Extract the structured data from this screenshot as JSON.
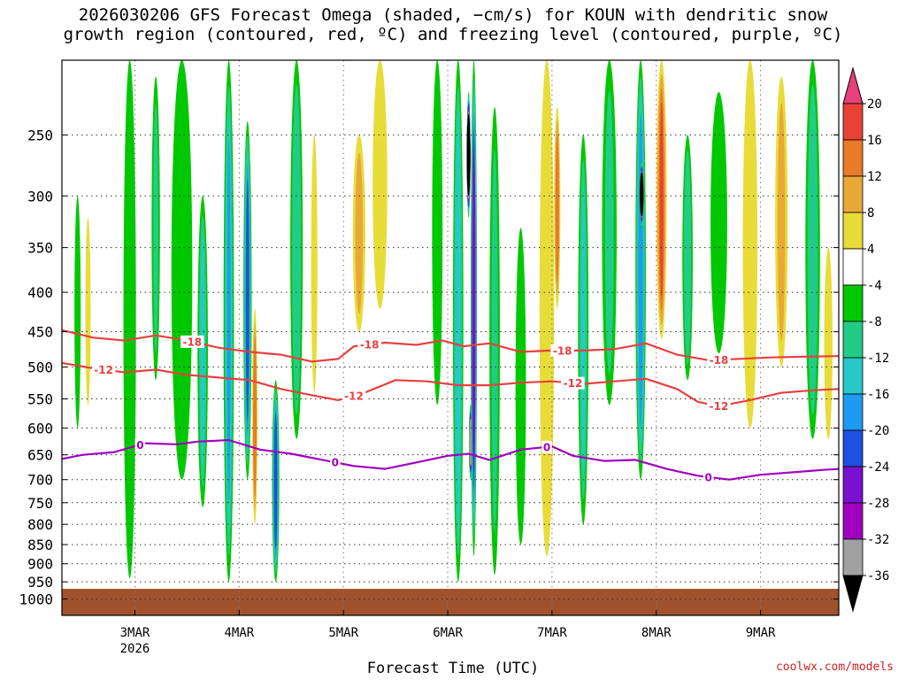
{
  "chart_data": {
    "type": "heatmap",
    "title_lines": [
      "2026030206 GFS Forecast Omega (shaded, −cm/s) for KOUN with dendritic snow",
      "growth region (contoured, red, ºC) and freezing level (contoured, purple, ºC)"
    ],
    "xlabel": "Forecast Time (UTC)",
    "credit": "coolwx.com/models",
    "x_ticks": [
      {
        "label": "3MAR",
        "sub": "2026",
        "day": 3
      },
      {
        "label": "4MAR",
        "sub": "",
        "day": 4
      },
      {
        "label": "5MAR",
        "sub": "",
        "day": 5
      },
      {
        "label": "6MAR",
        "sub": "",
        "day": 6
      },
      {
        "label": "7MAR",
        "sub": "",
        "day": 7
      },
      {
        "label": "8MAR",
        "sub": "",
        "day": 8
      },
      {
        "label": "9MAR",
        "sub": "",
        "day": 9
      }
    ],
    "xlim_days": [
      2.3,
      9.75
    ],
    "y_ticks": [
      250,
      300,
      350,
      400,
      450,
      500,
      550,
      600,
      650,
      700,
      750,
      800,
      850,
      900,
      950,
      1000
    ],
    "ylim_hpa": [
      200,
      1050
    ],
    "y_scale": "log-pressure",
    "grid": "dotted",
    "colorbar": {
      "labels": [
        20,
        16,
        12,
        8,
        4,
        -4,
        -8,
        -12,
        -16,
        -20,
        -24,
        -28,
        -32,
        -36
      ],
      "bins": [
        {
          "lo": 20,
          "hi": 99,
          "color": "#e8407a"
        },
        {
          "lo": 16,
          "hi": 20,
          "color": "#e84236"
        },
        {
          "lo": 12,
          "hi": 16,
          "color": "#e87a28"
        },
        {
          "lo": 8,
          "hi": 12,
          "color": "#e8a838"
        },
        {
          "lo": 4,
          "hi": 8,
          "color": "#e8dc38"
        },
        {
          "lo": -4,
          "hi": 4,
          "color": "#ffffff"
        },
        {
          "lo": -8,
          "hi": -4,
          "color": "#00c800"
        },
        {
          "lo": -12,
          "hi": -8,
          "color": "#22cc88"
        },
        {
          "lo": -16,
          "hi": -12,
          "color": "#26c8c8"
        },
        {
          "lo": -20,
          "hi": -16,
          "color": "#1e9bf0"
        },
        {
          "lo": -24,
          "hi": -20,
          "color": "#2050e0"
        },
        {
          "lo": -28,
          "hi": -24,
          "color": "#7a10d0"
        },
        {
          "lo": -32,
          "hi": -28,
          "color": "#a000c0"
        },
        {
          "lo": -36,
          "hi": -32,
          "color": "#a0a0a0"
        },
        {
          "lo": -99,
          "hi": -36,
          "color": "#000000"
        }
      ]
    },
    "ground_color": "#a0522d",
    "surface_pressure_hpa": 970,
    "omega_features": [
      {
        "day": 2.45,
        "p_top": 300,
        "p_bot": 600,
        "width": 0.06,
        "value": -6
      },
      {
        "day": 2.55,
        "p_top": 320,
        "p_bot": 560,
        "width": 0.05,
        "value": 5
      },
      {
        "day": 2.95,
        "p_top": 200,
        "p_bot": 940,
        "width": 0.12,
        "value": -8
      },
      {
        "day": 3.2,
        "p_top": 210,
        "p_bot": 520,
        "width": 0.08,
        "value": -10
      },
      {
        "day": 3.45,
        "p_top": 200,
        "p_bot": 700,
        "width": 0.2,
        "value": -8
      },
      {
        "day": 3.65,
        "p_top": 300,
        "p_bot": 760,
        "width": 0.1,
        "value": -13
      },
      {
        "day": 3.9,
        "p_top": 200,
        "p_bot": 950,
        "width": 0.1,
        "value": -18
      },
      {
        "day": 4.08,
        "p_top": 330,
        "p_bot": 470,
        "width": 0.04,
        "value": -40
      },
      {
        "day": 4.08,
        "p_top": 240,
        "p_bot": 700,
        "width": 0.08,
        "value": -22
      },
      {
        "day": 4.15,
        "p_top": 420,
        "p_bot": 800,
        "width": 0.05,
        "value": 14
      },
      {
        "day": 4.35,
        "p_top": 520,
        "p_bot": 950,
        "width": 0.07,
        "value": -22
      },
      {
        "day": 4.55,
        "p_top": 200,
        "p_bot": 620,
        "width": 0.12,
        "value": -11
      },
      {
        "day": 4.72,
        "p_top": 250,
        "p_bot": 540,
        "width": 0.06,
        "value": 6
      },
      {
        "day": 5.15,
        "p_top": 250,
        "p_bot": 450,
        "width": 0.12,
        "value": 10
      },
      {
        "day": 5.35,
        "p_top": 200,
        "p_bot": 420,
        "width": 0.14,
        "value": 6
      },
      {
        "day": 5.9,
        "p_top": 200,
        "p_bot": 560,
        "width": 0.1,
        "value": -8
      },
      {
        "day": 6.1,
        "p_top": 200,
        "p_bot": 950,
        "width": 0.1,
        "value": -16
      },
      {
        "day": 6.2,
        "p_top": 220,
        "p_bot": 320,
        "width": 0.03,
        "value": -40
      },
      {
        "day": 6.22,
        "p_top": 560,
        "p_bot": 700,
        "width": 0.03,
        "value": -34
      },
      {
        "day": 6.25,
        "p_top": 200,
        "p_bot": 880,
        "width": 0.06,
        "value": -26
      },
      {
        "day": 6.45,
        "p_top": 230,
        "p_bot": 930,
        "width": 0.1,
        "value": -9
      },
      {
        "day": 6.7,
        "p_top": 330,
        "p_bot": 850,
        "width": 0.1,
        "value": -8
      },
      {
        "day": 6.95,
        "p_top": 200,
        "p_bot": 880,
        "width": 0.14,
        "value": 6
      },
      {
        "day": 7.05,
        "p_top": 230,
        "p_bot": 420,
        "width": 0.06,
        "value": 13
      },
      {
        "day": 7.3,
        "p_top": 250,
        "p_bot": 800,
        "width": 0.1,
        "value": -13
      },
      {
        "day": 7.55,
        "p_top": 200,
        "p_bot": 560,
        "width": 0.14,
        "value": -9
      },
      {
        "day": 7.85,
        "p_top": 200,
        "p_bot": 700,
        "width": 0.1,
        "value": -20
      },
      {
        "day": 7.86,
        "p_top": 270,
        "p_bot": 330,
        "width": 0.04,
        "value": -40
      },
      {
        "day": 8.05,
        "p_top": 200,
        "p_bot": 460,
        "width": 0.1,
        "value": 18
      },
      {
        "day": 8.3,
        "p_top": 250,
        "p_bot": 520,
        "width": 0.1,
        "value": -11
      },
      {
        "day": 8.6,
        "p_top": 220,
        "p_bot": 480,
        "width": 0.16,
        "value": -8
      },
      {
        "day": 8.9,
        "p_top": 200,
        "p_bot": 600,
        "width": 0.14,
        "value": 6
      },
      {
        "day": 9.2,
        "p_top": 210,
        "p_bot": 500,
        "width": 0.12,
        "value": 9
      },
      {
        "day": 9.5,
        "p_top": 200,
        "p_bot": 620,
        "width": 0.14,
        "value": -12
      },
      {
        "day": 9.65,
        "p_top": 350,
        "p_bot": 620,
        "width": 0.08,
        "value": 8
      }
    ],
    "contours": [
      {
        "name": "-18",
        "color": "#e84040",
        "labels": [
          {
            "text": "-18",
            "day": 3.55
          },
          {
            "text": "-18",
            "day": 5.25
          },
          {
            "text": "-18",
            "day": 7.1
          },
          {
            "text": "-18",
            "day": 8.6
          }
        ],
        "points": [
          [
            2.3,
            448
          ],
          [
            2.6,
            458
          ],
          [
            2.9,
            462
          ],
          [
            3.2,
            455
          ],
          [
            3.5,
            462
          ],
          [
            3.8,
            472
          ],
          [
            4.1,
            478
          ],
          [
            4.4,
            482
          ],
          [
            4.7,
            492
          ],
          [
            4.95,
            488
          ],
          [
            5.1,
            470
          ],
          [
            5.4,
            465
          ],
          [
            5.7,
            468
          ],
          [
            5.95,
            462
          ],
          [
            6.15,
            470
          ],
          [
            6.4,
            466
          ],
          [
            6.7,
            478
          ],
          [
            7.0,
            476
          ],
          [
            7.3,
            476
          ],
          [
            7.6,
            474
          ],
          [
            7.9,
            466
          ],
          [
            8.2,
            482
          ],
          [
            8.5,
            490
          ],
          [
            8.8,
            488
          ],
          [
            9.1,
            486
          ],
          [
            9.4,
            485
          ],
          [
            9.75,
            484
          ]
        ]
      },
      {
        "name": "-12",
        "color": "#e84040",
        "labels": [
          {
            "text": "-12",
            "day": 2.7
          },
          {
            "text": "-12",
            "day": 5.1
          },
          {
            "text": "-12",
            "day": 7.2
          },
          {
            "text": "-12",
            "day": 8.6
          }
        ],
        "points": [
          [
            2.3,
            494
          ],
          [
            2.6,
            502
          ],
          [
            2.9,
            508
          ],
          [
            3.2,
            504
          ],
          [
            3.5,
            512
          ],
          [
            3.8,
            516
          ],
          [
            4.1,
            520
          ],
          [
            4.4,
            534
          ],
          [
            4.7,
            544
          ],
          [
            4.95,
            552
          ],
          [
            5.2,
            540
          ],
          [
            5.5,
            520
          ],
          [
            5.8,
            522
          ],
          [
            6.1,
            528
          ],
          [
            6.4,
            528
          ],
          [
            6.7,
            524
          ],
          [
            7.0,
            522
          ],
          [
            7.3,
            526
          ],
          [
            7.6,
            522
          ],
          [
            7.9,
            518
          ],
          [
            8.2,
            534
          ],
          [
            8.4,
            555
          ],
          [
            8.6,
            562
          ],
          [
            8.9,
            552
          ],
          [
            9.2,
            540
          ],
          [
            9.5,
            536
          ],
          [
            9.75,
            534
          ]
        ]
      },
      {
        "name": "0",
        "color": "#a000c0",
        "labels": [
          {
            "text": "0",
            "day": 3.05
          },
          {
            "text": "0",
            "day": 4.92
          },
          {
            "text": "0",
            "day": 6.95
          },
          {
            "text": "0",
            "day": 8.5
          }
        ],
        "points": [
          [
            2.3,
            658
          ],
          [
            2.5,
            650
          ],
          [
            2.8,
            645
          ],
          [
            3.1,
            628
          ],
          [
            3.4,
            630
          ],
          [
            3.6,
            625
          ],
          [
            3.9,
            622
          ],
          [
            4.2,
            640
          ],
          [
            4.5,
            648
          ],
          [
            4.8,
            660
          ],
          [
            5.1,
            672
          ],
          [
            5.4,
            678
          ],
          [
            5.7,
            665
          ],
          [
            6.0,
            652
          ],
          [
            6.2,
            648
          ],
          [
            6.4,
            660
          ],
          [
            6.7,
            640
          ],
          [
            7.0,
            634
          ],
          [
            7.2,
            652
          ],
          [
            7.5,
            662
          ],
          [
            7.8,
            660
          ],
          [
            8.1,
            678
          ],
          [
            8.4,
            692
          ],
          [
            8.7,
            700
          ],
          [
            9.0,
            690
          ],
          [
            9.3,
            685
          ],
          [
            9.6,
            680
          ],
          [
            9.75,
            678
          ]
        ]
      }
    ]
  }
}
